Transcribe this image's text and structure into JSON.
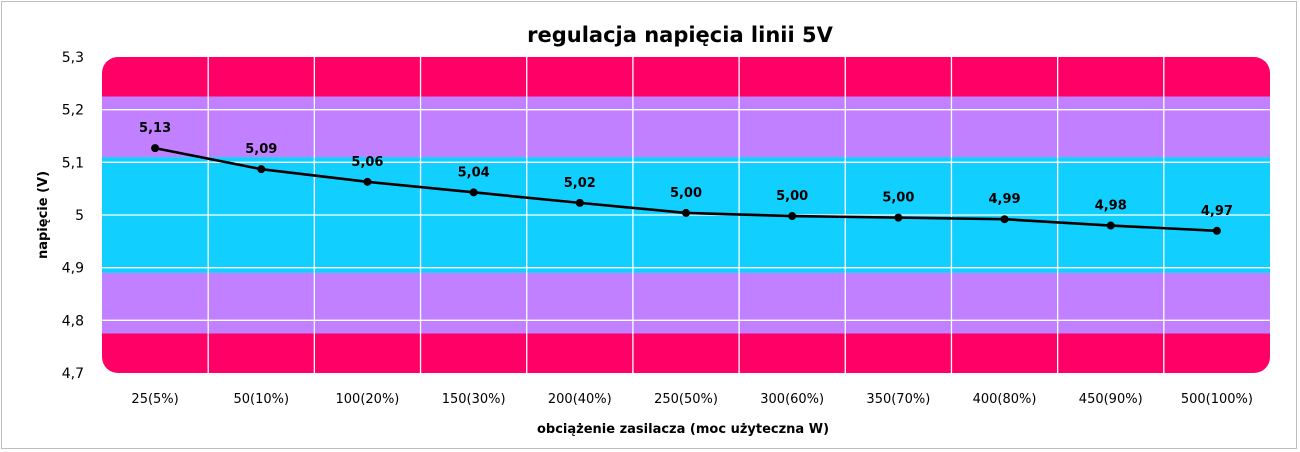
{
  "chart_data": {
    "type": "line",
    "title": "regulacja napięcia linii 5V",
    "xlabel": "obciążenie zasilacza (moc użyteczna W)",
    "ylabel": "napięcie (V)",
    "ylim": [
      4.7,
      5.3
    ],
    "yticks": [
      "4,7",
      "4,8",
      "4,9",
      "5",
      "5,1",
      "5,2",
      "5,3"
    ],
    "categories": [
      "25(5%)",
      "50(10%)",
      "100(20%)",
      "150(30%)",
      "200(40%)",
      "250(50%)",
      "300(60%)",
      "350(70%)",
      "400(80%)",
      "450(90%)",
      "500(100%)"
    ],
    "series": [
      {
        "values": [
          5.127,
          5.087,
          5.063,
          5.043,
          5.023,
          5.004,
          4.998,
          4.995,
          4.992,
          4.98,
          4.97
        ],
        "labels": [
          "5,13",
          "5,09",
          "5,06",
          "5,04",
          "5,02",
          "5,00",
          "5,00",
          "5,00",
          "4,99",
          "4,98",
          "4,97"
        ]
      }
    ],
    "bands": [
      {
        "from": 4.7,
        "to": 4.775,
        "color": "#ff0066"
      },
      {
        "from": 4.775,
        "to": 4.89,
        "color": "#c080ff"
      },
      {
        "from": 4.89,
        "to": 5.11,
        "color": "#11d0ff"
      },
      {
        "from": 5.11,
        "to": 5.225,
        "color": "#c080ff"
      },
      {
        "from": 5.225,
        "to": 5.3,
        "color": "#ff0066"
      }
    ],
    "grid": true,
    "line_color": "#000000"
  }
}
